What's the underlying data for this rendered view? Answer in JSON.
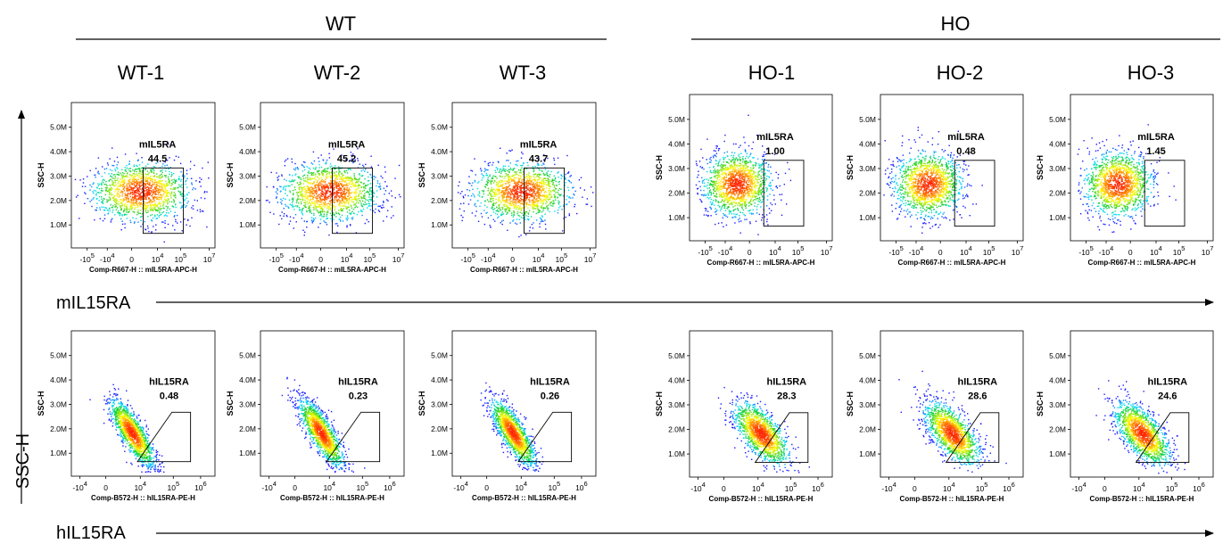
{
  "groups": [
    {
      "label": "WT"
    },
    {
      "label": "HO"
    }
  ],
  "samples": [
    "WT-1",
    "WT-2",
    "WT-3",
    "HO-1",
    "HO-2",
    "HO-3"
  ],
  "y_axis_title": "SSC-H",
  "row_markers": [
    "mIL15RA",
    "hIL15RA"
  ],
  "colors": {
    "density_low": "#1a1aff",
    "density_mid": "#00e0ff",
    "density_mid2": "#20d020",
    "density_high": "#ffff00",
    "density_peak": "#ff2000",
    "ink": "#000000"
  },
  "chart_data": [
    {
      "type": "scatter",
      "row": 1,
      "xlabel": "Comp-R667-H :: mIL5RA-APC-H",
      "ylabel": "SSC-H",
      "yticks": [
        "5.0M",
        "4.0M",
        "3.0M",
        "2.0M",
        "1.0M"
      ],
      "xticks": [
        {
          "base": "-10",
          "exp": "5"
        },
        {
          "base": "-10",
          "exp": "4"
        },
        {
          "base": "0",
          "exp": ""
        },
        {
          "base": "10",
          "exp": "4"
        },
        {
          "base": "10",
          "exp": "5"
        },
        {
          "base": "10",
          "exp": "7"
        }
      ],
      "gate": {
        "name": "mIL5RA",
        "shape": "rectangle"
      },
      "panels": [
        {
          "sample": "WT-1",
          "gate_percent": "44.5"
        },
        {
          "sample": "WT-2",
          "gate_percent": "45.2"
        },
        {
          "sample": "WT-3",
          "gate_percent": "43.7"
        },
        {
          "sample": "HO-1",
          "gate_percent": "1.00"
        },
        {
          "sample": "HO-2",
          "gate_percent": "0.48"
        },
        {
          "sample": "HO-3",
          "gate_percent": "1.45"
        }
      ]
    },
    {
      "type": "scatter",
      "row": 2,
      "xlabel": "Comp-B572-H :: hIL15RA-PE-H",
      "ylabel": "SSC-H",
      "yticks": [
        "5.0M",
        "4.0M",
        "3.0M",
        "2.0M",
        "1.0M"
      ],
      "xticks": [
        {
          "base": "-10",
          "exp": "4"
        },
        {
          "base": "0",
          "exp": ""
        },
        {
          "base": "10",
          "exp": "4"
        },
        {
          "base": "10",
          "exp": "5"
        },
        {
          "base": "10",
          "exp": "6"
        }
      ],
      "gate": {
        "name": "hIL15RA",
        "shape": "trapezoid"
      },
      "panels": [
        {
          "sample": "WT-1",
          "gate_percent": "0.48"
        },
        {
          "sample": "WT-2",
          "gate_percent": "0.23"
        },
        {
          "sample": "WT-3",
          "gate_percent": "0.26"
        },
        {
          "sample": "HO-1",
          "gate_percent": "28.3"
        },
        {
          "sample": "HO-2",
          "gate_percent": "28.6"
        },
        {
          "sample": "HO-3",
          "gate_percent": "24.6"
        }
      ]
    }
  ]
}
